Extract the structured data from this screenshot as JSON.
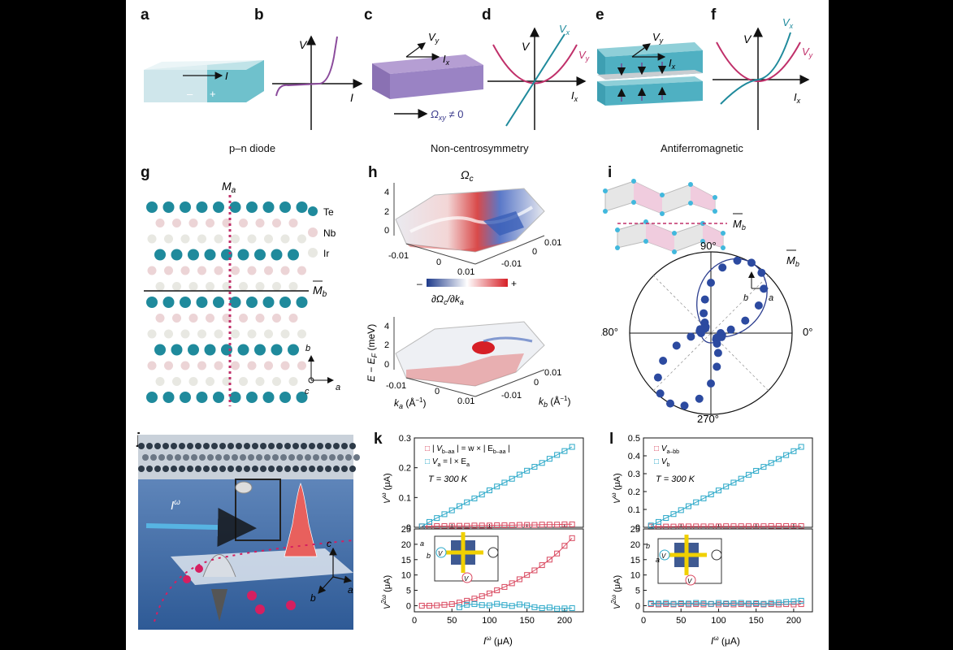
{
  "panel_labels": {
    "a": "a",
    "b": "b",
    "c": "c",
    "d": "d",
    "e": "e",
    "f": "f",
    "g": "g",
    "h": "h",
    "i": "i",
    "j": "j",
    "k": "k",
    "l": "l"
  },
  "captions": {
    "pn": "p–n diode",
    "nc": "Non-centrosymmetry",
    "afm": "Antiferromagnetic"
  },
  "panel_a": {
    "current": "I",
    "minus": "–",
    "plus": "+"
  },
  "panel_b": {
    "ylabel": "V",
    "xlabel": "I"
  },
  "panel_c": {
    "vy": "V",
    "vy_sub": "y",
    "ix": "I",
    "ix_sub": "x",
    "omega": "Ω",
    "omega_sub": "xy",
    "omega_rest": " ≠ 0"
  },
  "panel_d": {
    "ylabel": "V",
    "xlabel": "I",
    "xlabel_sub": "x",
    "vx": "V",
    "vx_sub": "x",
    "vy": "V",
    "vy_sub": "y"
  },
  "panel_e": {
    "vy": "V",
    "vy_sub": "y",
    "ix": "I",
    "ix_sub": "x"
  },
  "panel_f": {
    "ylabel": "V",
    "xlabel": "I",
    "xlabel_sub": "x",
    "vx": "V",
    "vx_sub": "x",
    "vy": "V",
    "vy_sub": "y"
  },
  "panel_g": {
    "ma": "M",
    "ma_sub": "a",
    "mb": "M",
    "mb_sub": "b",
    "legend": [
      "Te",
      "Nb",
      "Ir"
    ],
    "axis_b": "b",
    "axis_a": "a",
    "axis_c": "c"
  },
  "panel_h": {
    "title": "Ω",
    "title_sub": "c",
    "zlabel": "E − E",
    "zlabel_sub": "F",
    "zlabel_unit": " (meV)",
    "zticks": [
      "4",
      "2",
      "0"
    ],
    "ka_ticks": [
      "-0.01",
      "0",
      "0.01"
    ],
    "kb_ticks": [
      "-0.01",
      "0",
      "0.01"
    ],
    "cbar_label": "∂Ω",
    "cbar_label_sub": "c",
    "cbar_label_rest": "/∂k",
    "cbar_label_sub2": "a",
    "cbar_minus": "–",
    "cbar_plus": "+",
    "ka_label": "k",
    "ka_sub": "a",
    "ka_unit": " (Å",
    "ka_exp": "−1",
    "kb_label": "k",
    "kb_sub": "b"
  },
  "panel_i": {
    "mb": "M",
    "mb_sub": "b",
    "angles": [
      "90°",
      "180°",
      "0°",
      "270°"
    ],
    "axis_c": "c",
    "axis_b": "b",
    "axis_a": "a"
  },
  "panel_j": {
    "iomega": "I",
    "iomega_sup": "ω",
    "axis_c": "c",
    "axis_a": "a",
    "axis_b": "b"
  },
  "panel_k": {
    "legend1": "| V",
    "legend1_sub": "b–aa",
    "legend1_rest": " | = w × | E",
    "legend1_sub2": "b–aa",
    "legend1_end": " |",
    "legend2": "V",
    "legend2_sub": "a",
    "legend2_rest": " = l × E",
    "legend2_sub2": "a",
    "temp": "T = 300 K",
    "top_ylabel": "V",
    "top_ylabel_sup": "ω",
    "top_ylabel_unit": " (μA)",
    "bot_ylabel": "V",
    "bot_ylabel_sup": "2ω",
    "bot_ylabel_unit": " (μA)",
    "xlabel": "I",
    "xlabel_sup": "ω",
    "xlabel_unit": " (μA)",
    "inset": {
      "a": "a",
      "b": "b",
      "v": "V"
    }
  },
  "panel_l": {
    "legend1": "V",
    "legend1_sub": "a–bb",
    "legend2": "V",
    "legend2_sub": "b",
    "temp": "T = 300 K",
    "top_ylabel": "V",
    "top_ylabel_sup": "ω",
    "top_ylabel_unit": " (μA)",
    "bot_ylabel": "V",
    "bot_ylabel_sup": "2ω",
    "bot_ylabel_unit": " (μA)",
    "xlabel": "I",
    "xlabel_sup": "ω",
    "xlabel_unit": " (μA)",
    "inset": {
      "a": "a",
      "b": "b",
      "v": "V"
    }
  },
  "chart_data": [
    {
      "panel": "k-top",
      "type": "scatter",
      "xlim": [
        0,
        225
      ],
      "ylim": [
        0,
        0.3
      ],
      "xticks": [
        0,
        50,
        100,
        150,
        200
      ],
      "yticks": [
        0,
        0.1,
        0.2,
        0.3
      ],
      "series": [
        {
          "name": "| Vb–aa | = w × | Eb–aa |",
          "color": "#d9485f",
          "x": [
            10,
            20,
            30,
            40,
            50,
            60,
            70,
            80,
            90,
            100,
            110,
            120,
            130,
            140,
            150,
            160,
            170,
            180,
            190,
            200,
            210
          ],
          "y": [
            0.003,
            0.003,
            0.004,
            0.004,
            0.005,
            0.005,
            0.005,
            0.006,
            0.006,
            0.006,
            0.007,
            0.007,
            0.007,
            0.008,
            0.008,
            0.008,
            0.009,
            0.009,
            0.009,
            0.01,
            0.01
          ]
        },
        {
          "name": "Va = l × Ea",
          "color": "#2aa8c8",
          "x": [
            10,
            20,
            30,
            40,
            50,
            60,
            70,
            80,
            90,
            100,
            110,
            120,
            130,
            140,
            150,
            160,
            170,
            180,
            190,
            200,
            210
          ],
          "y": [
            0.003,
            0.018,
            0.031,
            0.044,
            0.057,
            0.071,
            0.084,
            0.097,
            0.11,
            0.124,
            0.137,
            0.15,
            0.163,
            0.177,
            0.19,
            0.203,
            0.216,
            0.23,
            0.243,
            0.256,
            0.27
          ]
        }
      ]
    },
    {
      "panel": "k-bottom",
      "type": "scatter",
      "xlim": [
        0,
        225
      ],
      "ylim": [
        -2,
        25
      ],
      "xticks": [
        0,
        50,
        100,
        150,
        200
      ],
      "yticks": [
        0,
        5,
        10,
        15,
        20,
        25
      ],
      "series": [
        {
          "name": "| Vb–aa | = w × | Eb–aa |",
          "color": "#d9485f",
          "x": [
            10,
            20,
            30,
            40,
            50,
            60,
            70,
            80,
            90,
            100,
            110,
            120,
            130,
            140,
            150,
            160,
            170,
            180,
            190,
            200,
            210
          ],
          "y": [
            0,
            0,
            0.1,
            0.3,
            0.5,
            1.0,
            1.6,
            2.3,
            3.1,
            4.0,
            5.0,
            6.1,
            7.3,
            8.6,
            10.0,
            11.5,
            13.2,
            15.0,
            17.0,
            19.5,
            22.0
          ]
        },
        {
          "name": "Va = l × Ea",
          "color": "#2aa8c8",
          "x": [
            60,
            70,
            80,
            90,
            100,
            110,
            120,
            130,
            140,
            150,
            160,
            170,
            180,
            190,
            200,
            210
          ],
          "y": [
            -0.5,
            0.3,
            0.5,
            0.2,
            0.1,
            0.6,
            0.2,
            -0.1,
            0.4,
            0.1,
            -0.5,
            -0.8,
            -0.6,
            -1.0,
            -0.9,
            -0.8
          ]
        }
      ]
    },
    {
      "panel": "l-top",
      "type": "scatter",
      "xlim": [
        0,
        225
      ],
      "ylim": [
        0,
        0.5
      ],
      "xticks": [
        0,
        50,
        100,
        150,
        200
      ],
      "yticks": [
        0,
        0.1,
        0.2,
        0.3,
        0.4,
        0.5
      ],
      "series": [
        {
          "name": "Va–bb",
          "color": "#d9485f",
          "x": [
            10,
            20,
            30,
            40,
            50,
            60,
            70,
            80,
            90,
            100,
            110,
            120,
            130,
            140,
            150,
            160,
            170,
            180,
            190,
            200,
            210
          ],
          "y": [
            0.004,
            0.004,
            0.004,
            0.004,
            0.005,
            0.005,
            0.005,
            0.005,
            0.005,
            0.005,
            0.006,
            0.006,
            0.006,
            0.006,
            0.006,
            0.006,
            0.007,
            0.007,
            0.007,
            0.007,
            0.007
          ]
        },
        {
          "name": "Vb",
          "color": "#2aa8c8",
          "x": [
            10,
            20,
            30,
            40,
            50,
            60,
            70,
            80,
            90,
            100,
            110,
            120,
            130,
            140,
            150,
            160,
            170,
            180,
            190,
            200,
            210
          ],
          "y": [
            0.01,
            0.03,
            0.052,
            0.074,
            0.096,
            0.118,
            0.14,
            0.162,
            0.184,
            0.206,
            0.228,
            0.25,
            0.272,
            0.294,
            0.316,
            0.338,
            0.36,
            0.382,
            0.404,
            0.426,
            0.45
          ]
        }
      ]
    },
    {
      "panel": "l-bottom",
      "type": "scatter",
      "xlim": [
        0,
        225
      ],
      "ylim": [
        -2,
        25
      ],
      "xticks": [
        0,
        50,
        100,
        150,
        200
      ],
      "yticks": [
        0,
        5,
        10,
        15,
        20,
        25
      ],
      "series": [
        {
          "name": "Va–bb",
          "color": "#d9485f",
          "x": [
            10,
            20,
            30,
            40,
            50,
            60,
            70,
            80,
            90,
            100,
            110,
            120,
            130,
            140,
            150,
            160,
            170,
            180,
            190,
            200,
            210
          ],
          "y": [
            0.5,
            0.4,
            0.5,
            0.4,
            0.5,
            0.4,
            0.5,
            0.4,
            0.5,
            0.4,
            0.5,
            0.4,
            0.5,
            0.4,
            0.5,
            0.4,
            0.5,
            0.4,
            0.5,
            0.4,
            0.5
          ]
        },
        {
          "name": "Vb",
          "color": "#2aa8c8",
          "x": [
            10,
            20,
            30,
            40,
            50,
            60,
            70,
            80,
            90,
            100,
            110,
            120,
            130,
            140,
            150,
            160,
            170,
            180,
            190,
            200,
            210
          ],
          "y": [
            0.8,
            0.7,
            0.9,
            0.6,
            0.8,
            0.7,
            0.9,
            0.8,
            0.6,
            0.9,
            0.7,
            0.8,
            0.9,
            0.7,
            0.8,
            0.6,
            0.9,
            1.0,
            1.2,
            1.4,
            1.6
          ]
        }
      ]
    },
    {
      "panel": "i",
      "type": "scatter",
      "projection": "polar",
      "rlim": [
        0,
        1
      ],
      "theta_deg": [
        0,
        10,
        20,
        30,
        40,
        50,
        60,
        70,
        80,
        90,
        100,
        110,
        120,
        130,
        140,
        150,
        160,
        170,
        180,
        190,
        200,
        210,
        220,
        230,
        240,
        250,
        260,
        270,
        280,
        290,
        300,
        310,
        320,
        330,
        340,
        350
      ],
      "r": [
        0.12,
        0.25,
        0.45,
        0.68,
        0.85,
        0.97,
        1.0,
        0.95,
        0.82,
        0.62,
        0.42,
        0.26,
        0.15,
        0.1,
        0.09,
        0.11,
        0.14,
        0.14,
        0.12,
        0.25,
        0.45,
        0.68,
        0.85,
        0.97,
        1.0,
        0.95,
        0.82,
        0.62,
        0.42,
        0.26,
        0.15,
        0.1,
        0.09,
        0.11,
        0.14,
        0.14
      ]
    }
  ]
}
